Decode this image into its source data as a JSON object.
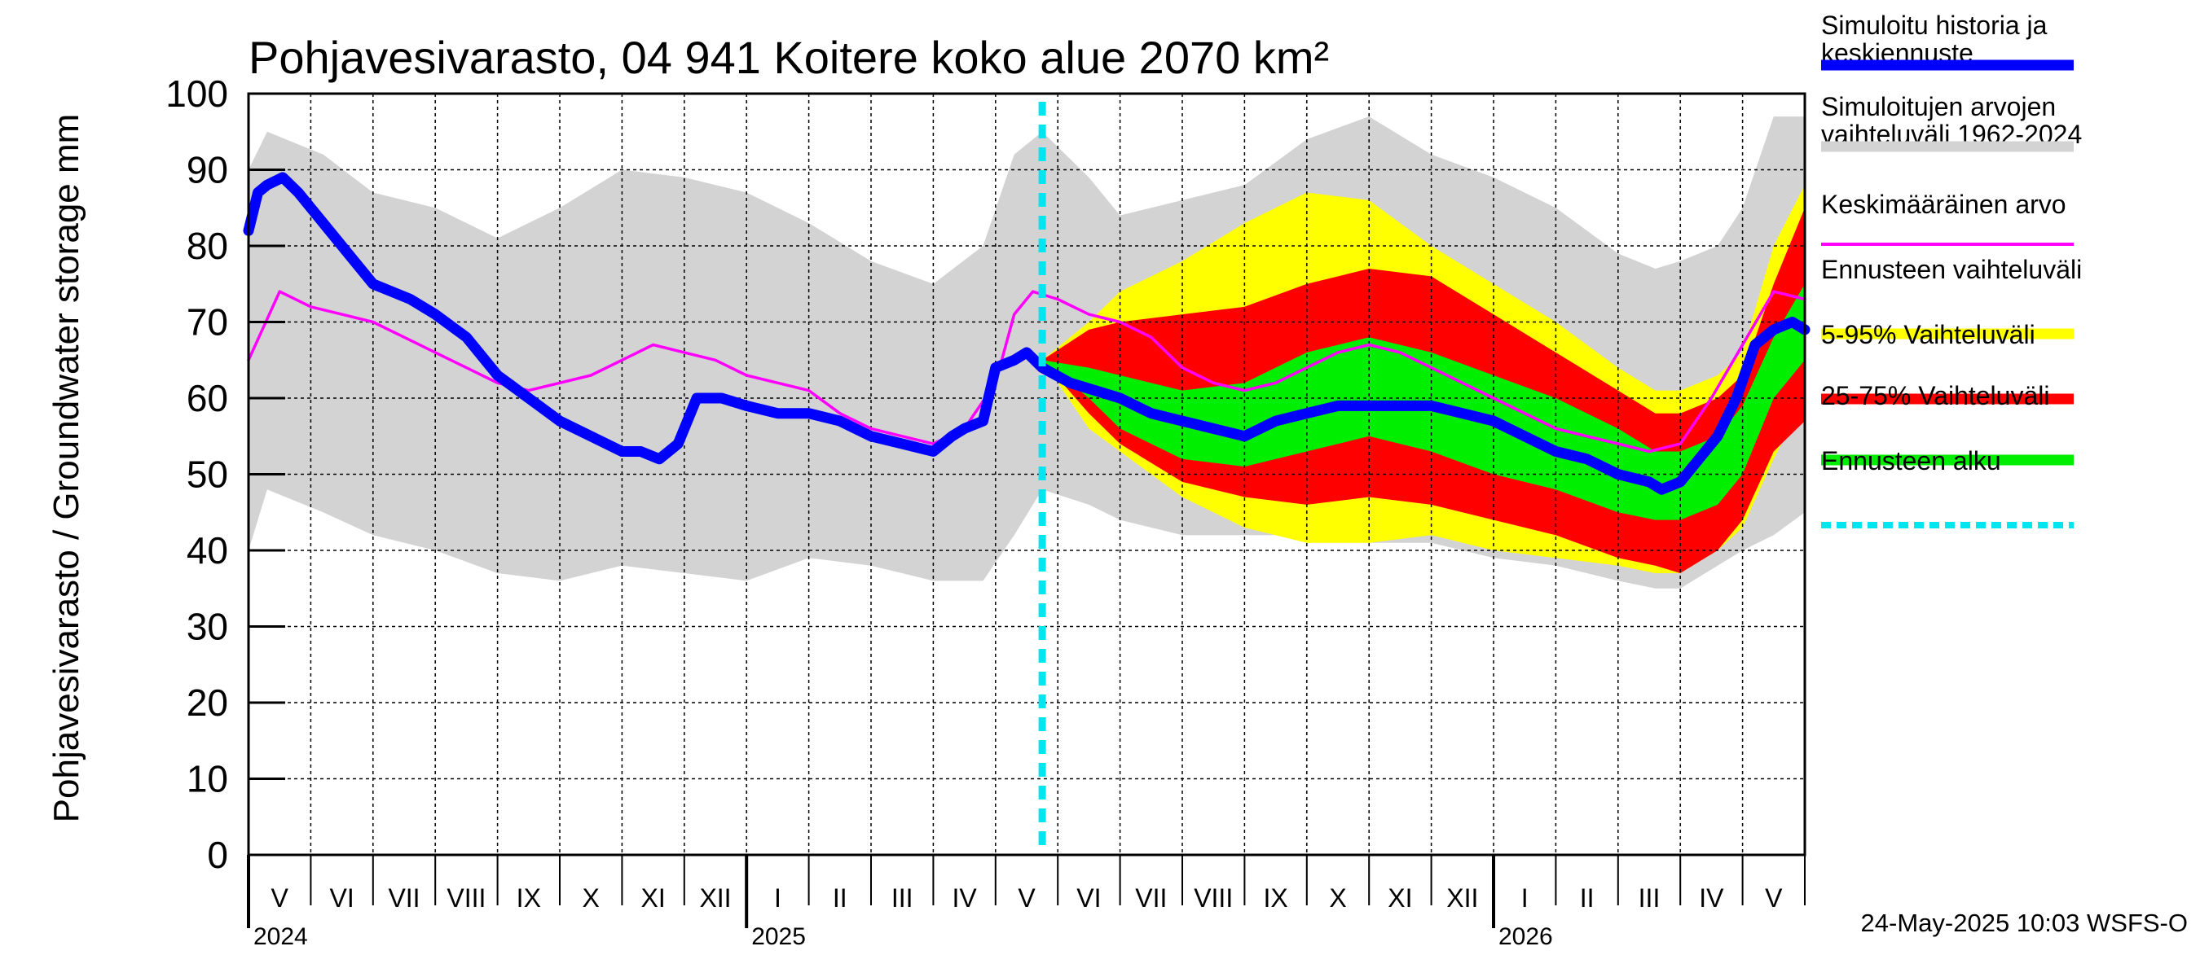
{
  "chart_data": {
    "type": "area",
    "title": "Pohjavesivarasto, 04 941 Koitere koko alue 2070 km²",
    "ylabel": "Pohjavesivarasto / Groundwater storage   mm",
    "ylim": [
      0,
      100
    ],
    "yticks": [
      0,
      10,
      20,
      30,
      40,
      50,
      60,
      70,
      80,
      90,
      100
    ],
    "xlim": [
      0,
      25
    ],
    "x_unit": "months since 1 May 2024",
    "month_labels": [
      {
        "label": "V",
        "start": 0
      },
      {
        "label": "VI",
        "start": 1
      },
      {
        "label": "VII",
        "start": 2
      },
      {
        "label": "VIII",
        "start": 3
      },
      {
        "label": "IX",
        "start": 4
      },
      {
        "label": "X",
        "start": 5
      },
      {
        "label": "XI",
        "start": 6
      },
      {
        "label": "XII",
        "start": 7
      },
      {
        "label": "I",
        "start": 8
      },
      {
        "label": "II",
        "start": 9
      },
      {
        "label": "III",
        "start": 10
      },
      {
        "label": "IV",
        "start": 11
      },
      {
        "label": "V",
        "start": 12
      },
      {
        "label": "VI",
        "start": 13
      },
      {
        "label": "VII",
        "start": 14
      },
      {
        "label": "VIII",
        "start": 15
      },
      {
        "label": "IX",
        "start": 16
      },
      {
        "label": "X",
        "start": 17
      },
      {
        "label": "XI",
        "start": 18
      },
      {
        "label": "XII",
        "start": 19
      },
      {
        "label": "I",
        "start": 20
      },
      {
        "label": "II",
        "start": 21
      },
      {
        "label": "III",
        "start": 22
      },
      {
        "label": "IV",
        "start": 23
      },
      {
        "label": "V",
        "start": 24
      }
    ],
    "years": [
      {
        "label": "2024",
        "start": 0
      },
      {
        "label": "2025",
        "start": 8
      },
      {
        "label": "2026",
        "start": 20
      }
    ],
    "forecast_start": 12.75,
    "series": [
      {
        "name": "Simuloitujen arvojen vaihteluväli 1962-2024",
        "kind": "band",
        "color": "#d3d3d3",
        "x": [
          0,
          0.3,
          1.2,
          2,
          3,
          4,
          5,
          6,
          7,
          8,
          9,
          10,
          11,
          11.8,
          12.3,
          12.75,
          13.5,
          14,
          15,
          16,
          17,
          18,
          19,
          20,
          21,
          22,
          22.6,
          23,
          23.6,
          24,
          24.5,
          25
        ],
        "upper": [
          90,
          95,
          92,
          87,
          85,
          81,
          85,
          90,
          89,
          87,
          83,
          78,
          75,
          80,
          92,
          95,
          89,
          84,
          86,
          88,
          94,
          97,
          92,
          89,
          85,
          79,
          77,
          78,
          80,
          85,
          97,
          97
        ],
        "lower": [
          40,
          48,
          45,
          42,
          40,
          37,
          36,
          38,
          37,
          36,
          39,
          38,
          36,
          36,
          42,
          48,
          46,
          44,
          42,
          42,
          42,
          41,
          41,
          39,
          38,
          36,
          35,
          35,
          38,
          40,
          42,
          45
        ]
      },
      {
        "name": "Ennusteen vaihteluväli",
        "kind": "band",
        "color": "#ffff00",
        "x": [
          12.75,
          13.5,
          14,
          15,
          16,
          17,
          18,
          19,
          20,
          21,
          22,
          22.6,
          23,
          23.6,
          24,
          24.5,
          25
        ],
        "upper": [
          65,
          70,
          74,
          78,
          83,
          87,
          86,
          80,
          75,
          70,
          64,
          61,
          61,
          63,
          66,
          80,
          88
        ],
        "lower": [
          65,
          56,
          53,
          47,
          43,
          41,
          41,
          42,
          40,
          39,
          38,
          37,
          37,
          40,
          43,
          52,
          60
        ]
      },
      {
        "name": "5-95% Vaihteluväli",
        "kind": "band",
        "color": "#ff0000",
        "x": [
          12.75,
          13.5,
          14,
          15,
          16,
          17,
          18,
          19,
          20,
          21,
          22,
          22.6,
          23,
          23.6,
          24,
          24.5,
          25
        ],
        "upper": [
          65,
          69,
          70,
          71,
          72,
          75,
          77,
          76,
          71,
          66,
          61,
          58,
          58,
          60,
          63,
          75,
          85
        ],
        "lower": [
          65,
          58,
          54,
          49,
          47,
          46,
          47,
          46,
          44,
          42,
          39,
          38,
          37,
          40,
          44,
          53,
          57
        ]
      },
      {
        "name": "25-75% Vaihteluväli",
        "kind": "band",
        "color": "#00ee00",
        "x": [
          12.75,
          13.5,
          14,
          15,
          16,
          17,
          18,
          19,
          20,
          21,
          22,
          22.6,
          23,
          23.6,
          24,
          24.5,
          25
        ],
        "upper": [
          65,
          64,
          63,
          61,
          62,
          66,
          68,
          66,
          63,
          60,
          56,
          53,
          53,
          55,
          59,
          68,
          75
        ],
        "lower": [
          65,
          60,
          56,
          52,
          51,
          53,
          55,
          53,
          50,
          48,
          45,
          44,
          44,
          46,
          50,
          60,
          65
        ]
      },
      {
        "name": "Keskimääräinen arvo",
        "kind": "line",
        "color": "#ff00ff",
        "x": [
          0,
          0.5,
          1,
          1.5,
          2,
          2.5,
          3,
          3.5,
          4,
          4.5,
          5,
          5.5,
          6,
          6.5,
          7,
          7.5,
          8,
          8.5,
          9,
          9.5,
          10,
          10.5,
          11,
          11.5,
          12,
          12.3,
          12.6,
          13,
          13.5,
          14,
          14.5,
          15,
          15.5,
          16,
          16.5,
          17,
          17.5,
          18,
          18.5,
          19,
          19.5,
          20,
          20.5,
          21,
          21.5,
          22,
          22.5,
          23,
          23.5,
          24,
          24.5,
          25
        ],
        "values": [
          65,
          74,
          72,
          71,
          70,
          68,
          66,
          64,
          62,
          61,
          62,
          63,
          65,
          67,
          66,
          65,
          63,
          62,
          61,
          58,
          56,
          55,
          54,
          56,
          62,
          71,
          74,
          73,
          71,
          70,
          68,
          64,
          62,
          61,
          62,
          64,
          66,
          67,
          66,
          64,
          62,
          60,
          58,
          56,
          55,
          54,
          53,
          54,
          60,
          67,
          74,
          73
        ]
      },
      {
        "name": "Simuloitu historia ja keskiennuste",
        "kind": "line",
        "color": "#0000ff",
        "x": [
          0,
          0.15,
          0.3,
          0.55,
          0.8,
          1.2,
          1.6,
          2,
          2.3,
          2.6,
          3,
          3.5,
          4,
          4.5,
          5,
          5.5,
          6,
          6.3,
          6.6,
          6.9,
          7.2,
          7.6,
          8,
          8.5,
          9,
          9.5,
          10,
          10.5,
          11,
          11.3,
          11.5,
          11.8,
          12,
          12.3,
          12.5,
          12.75,
          13.2,
          13.6,
          14,
          14.5,
          15,
          15.5,
          16,
          16.5,
          17,
          17.5,
          18,
          18.5,
          19,
          19.5,
          20,
          20.5,
          21,
          21.5,
          22,
          22.5,
          22.7,
          23,
          23.3,
          23.6,
          23.9,
          24.2,
          24.5,
          24.8,
          25
        ],
        "values": [
          82,
          87,
          88,
          89,
          87,
          83,
          79,
          75,
          74,
          73,
          71,
          68,
          63,
          60,
          57,
          55,
          53,
          53,
          52,
          54,
          60,
          60,
          59,
          58,
          58,
          57,
          55,
          54,
          53,
          55,
          56,
          57,
          64,
          65,
          66,
          64,
          62,
          61,
          60,
          58,
          57,
          56,
          55,
          57,
          58,
          59,
          59,
          59,
          59,
          58,
          57,
          55,
          53,
          52,
          50,
          49,
          48,
          49,
          52,
          55,
          60,
          67,
          69,
          70,
          69
        ]
      }
    ],
    "legend": [
      {
        "label": "Simuloitu historia ja keskiennuste",
        "color": "#0000ff",
        "style": "thick"
      },
      {
        "label": "Simuloitujen arvojen vaihteluväli 1962-2024",
        "color": "#d3d3d3",
        "style": "thick"
      },
      {
        "label": "Keskimääräinen arvo",
        "color": "#ff00ff",
        "style": "thin"
      },
      {
        "label": "Ennusteen vaihteluväli",
        "color": "#ffff00",
        "style": "thick"
      },
      {
        "label": "5-95% Vaihteluväli",
        "color": "#ff0000",
        "style": "thick"
      },
      {
        "label": "25-75% Vaihteluväli",
        "color": "#00ee00",
        "style": "thick"
      },
      {
        "label": "Ennusteen alku",
        "color": "#00e5ee",
        "style": "dashed"
      }
    ],
    "legend_lines": [
      [
        "Simuloitu historia ja",
        "keskiennuste"
      ],
      [
        "Simuloitujen arvojen",
        "vaihteluväli 1962-2024"
      ],
      [
        "Keskimääräinen arvo"
      ],
      [
        "Ennusteen vaihteluväli"
      ],
      [
        "5-95% Vaihteluväli"
      ],
      [
        "25-75% Vaihteluväli"
      ],
      [
        "Ennusteen alku"
      ]
    ],
    "footer": "24-May-2025 10:03 WSFS-O"
  }
}
